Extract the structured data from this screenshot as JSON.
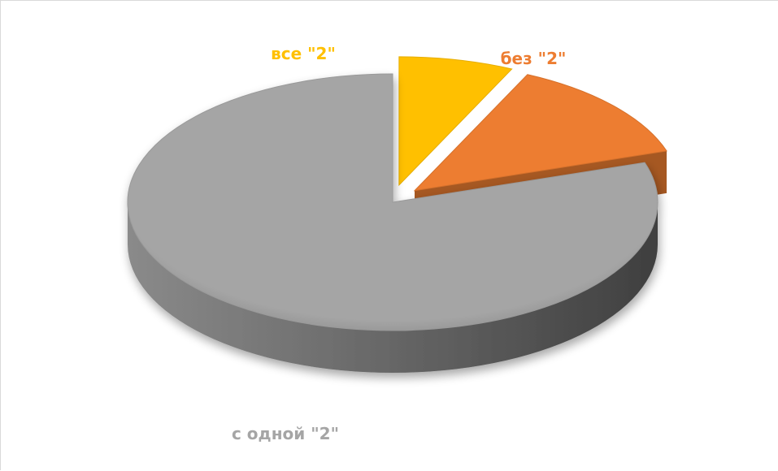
{
  "chart_data": {
    "type": "pie",
    "style": "3d-exploded",
    "categories": [
      "с одной \"2\"",
      "все \"2\"",
      "без \"2\""
    ],
    "values": [
      80,
      7,
      13
    ],
    "colors": [
      "#a5a5a5",
      "#ffc000",
      "#ed7d31"
    ],
    "label_colors": [
      "#a5a5a5",
      "#ffc000",
      "#ed7d31"
    ],
    "legend": "none"
  }
}
